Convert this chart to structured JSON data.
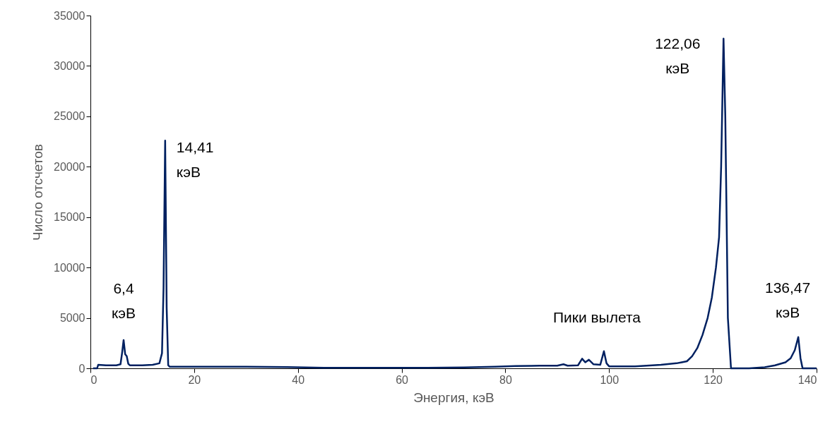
{
  "chart_data": {
    "type": "line",
    "xlabel": "Энергия, кэВ",
    "ylabel": "Число отсчетов",
    "xlim": [
      0,
      140
    ],
    "xticks": [
      0,
      20,
      40,
      60,
      80,
      100,
      120,
      140
    ],
    "ylim": [
      0,
      35000
    ],
    "yticks": [
      0,
      5000,
      10000,
      15000,
      20000,
      25000,
      30000,
      35000
    ],
    "grid": false,
    "marker": "none",
    "line_style": "solid",
    "series": [
      {
        "color": "#002060",
        "x": [
          0.5,
          1.3,
          1.5,
          3,
          5,
          5.8,
          6.1,
          6.4,
          6.7,
          7.0,
          7.3,
          7.6,
          10,
          12,
          13.3,
          13.8,
          14.1,
          14.41,
          14.7,
          15.0,
          15.3,
          20,
          30,
          38,
          45,
          55,
          65,
          72,
          78,
          82,
          85,
          88,
          90,
          91.2,
          92,
          94,
          94.8,
          95.4,
          96.1,
          97,
          98.3,
          99,
          99.5,
          100,
          105,
          110,
          113,
          114,
          115,
          116,
          117,
          118,
          119,
          119.8,
          120.6,
          121.2,
          121.6,
          122.06,
          122.4,
          122.9,
          123.5,
          127,
          130,
          132,
          134,
          135,
          135.8,
          136.47,
          136.9,
          137.3,
          140
        ],
        "values": [
          0,
          0,
          350,
          300,
          300,
          400,
          1500,
          2800,
          1400,
          1200,
          450,
          300,
          300,
          350,
          500,
          1500,
          8000,
          22600,
          6000,
          300,
          150,
          150,
          150,
          130,
          60,
          50,
          50,
          90,
          150,
          220,
          250,
          260,
          260,
          400,
          260,
          300,
          950,
          600,
          850,
          400,
          350,
          1700,
          500,
          200,
          200,
          350,
          500,
          600,
          700,
          1200,
          2000,
          3300,
          5000,
          7000,
          10000,
          13000,
          20000,
          32700,
          25000,
          5000,
          0,
          0,
          100,
          300,
          600,
          1000,
          1800,
          3100,
          1000,
          0,
          0
        ]
      }
    ],
    "annotations": [
      {
        "text": "6,4\nкэВ",
        "x": 6.4,
        "y": 2800
      },
      {
        "text": "14,41\nкэВ",
        "x": 14.41,
        "y": 22600
      },
      {
        "text": "122,06\nкэВ",
        "x": 122.06,
        "y": 32700
      },
      {
        "text": "136,47\nкэВ",
        "x": 136.47,
        "y": 3100
      },
      {
        "text": "Пики вылета",
        "x": 99,
        "y": 1700
      }
    ]
  }
}
